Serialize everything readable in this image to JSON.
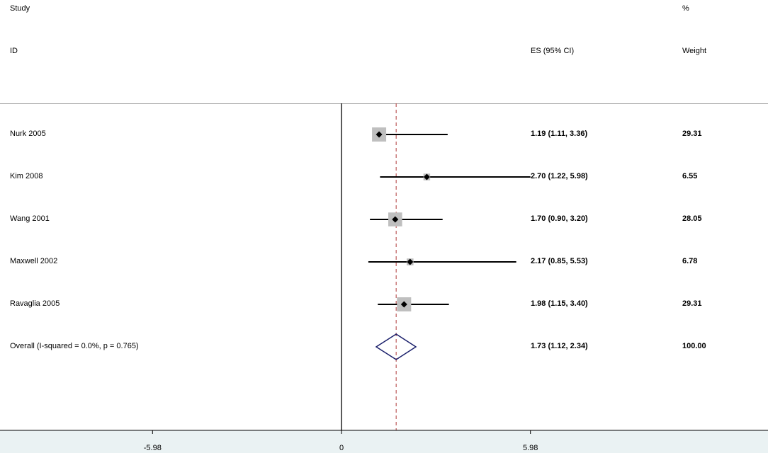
{
  "headers": {
    "study": "Study",
    "id": "ID",
    "es": "ES (95% CI)",
    "pct": "%",
    "weight": "Weight"
  },
  "chart_data": {
    "type": "forest",
    "title": "",
    "xlabel": "",
    "ylabel": "",
    "xlim": [
      -9.0,
      9.0
    ],
    "null_line": 0,
    "overall_line": 1.73,
    "xticks": [
      -5.98,
      0,
      5.98
    ],
    "xtick_labels": [
      "-5.98",
      "0",
      "5.98"
    ],
    "studies": [
      {
        "label": "Nurk 2005",
        "es": 1.19,
        "lo": 1.11,
        "hi": 3.36,
        "es_text": "1.19 (1.11, 3.36)",
        "weight": 29.31,
        "weight_text": "29.31"
      },
      {
        "label": "Kim 2008",
        "es": 2.7,
        "lo": 1.22,
        "hi": 5.98,
        "es_text": "2.70 (1.22, 5.98)",
        "weight": 6.55,
        "weight_text": "6.55"
      },
      {
        "label": "Wang 2001",
        "es": 1.7,
        "lo": 0.9,
        "hi": 3.2,
        "es_text": "1.70 (0.90, 3.20)",
        "weight": 28.05,
        "weight_text": "28.05"
      },
      {
        "label": "Maxwell 2002",
        "es": 2.17,
        "lo": 0.85,
        "hi": 5.53,
        "es_text": "2.17 (0.85, 5.53)",
        "weight": 6.78,
        "weight_text": "6.78"
      },
      {
        "label": "Ravaglia 2005",
        "es": 1.98,
        "lo": 1.15,
        "hi": 3.4,
        "es_text": "1.98 (1.15, 3.40)",
        "weight": 29.31,
        "weight_text": "29.31"
      }
    ],
    "overall": {
      "label": "Overall  (I-squared = 0.0%, p = 0.765)",
      "es": 1.73,
      "lo": 1.12,
      "hi": 2.34,
      "es_text": "1.73 (1.12, 2.34)",
      "weight_text": "100.00"
    },
    "colors": {
      "marker": "#000000",
      "weight_box": "#bfbfbf",
      "overall_diamond": "#1a1f6b",
      "overall_line": "#b03a3a",
      "bottom_band": "#eaf2f3"
    }
  }
}
